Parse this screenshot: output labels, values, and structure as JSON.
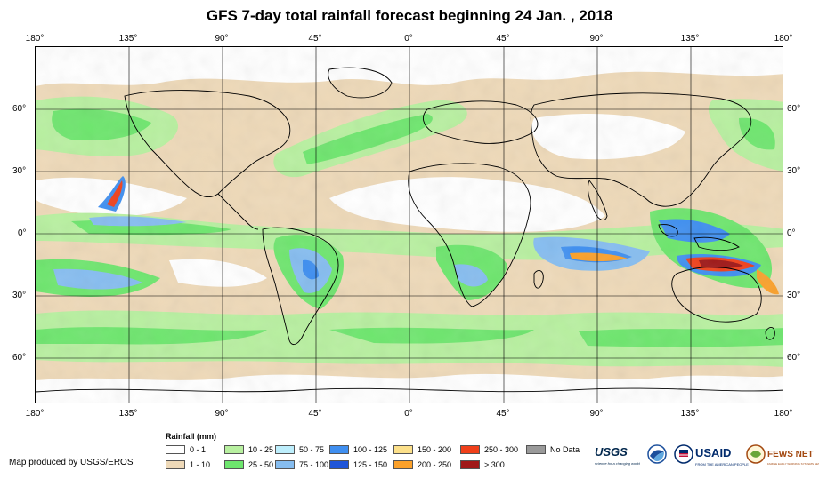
{
  "title": "GFS 7-day total rainfall forecast beginning 24 Jan. , 2018",
  "lon_labels_top": [
    "180°",
    "135°",
    "90°",
    "45°",
    "0°",
    "45°",
    "90°",
    "135°",
    "180°"
  ],
  "lon_labels_bottom": [
    "180°",
    "135°",
    "90°",
    "45°",
    "0°",
    "45°",
    "90°",
    "135°",
    "180°"
  ],
  "lat_labels": [
    "60°",
    "30°",
    "0°",
    "30°",
    "60°"
  ],
  "legend": {
    "title": "Rainfall (mm)",
    "items": [
      {
        "label": "0 - 1",
        "color": "#ffffff"
      },
      {
        "label": "1 - 10",
        "color": "#eed9b8"
      },
      {
        "label": "10 - 25",
        "color": "#b8f0a0"
      },
      {
        "label": "25 - 50",
        "color": "#6ee66e"
      },
      {
        "label": "50 - 75",
        "color": "#bdeefc"
      },
      {
        "label": "75 - 100",
        "color": "#86bdf0"
      },
      {
        "label": "100 - 125",
        "color": "#3f8ff0"
      },
      {
        "label": "125 - 150",
        "color": "#1f55d8"
      },
      {
        "label": "150 - 200",
        "color": "#fce08a"
      },
      {
        "label": "200 - 250",
        "color": "#fca12a"
      },
      {
        "label": "250 - 300",
        "color": "#f0401a"
      },
      {
        "label": "> 300",
        "color": "#a01818"
      },
      {
        "label": "No Data",
        "color": "#9a9a9a"
      }
    ]
  },
  "credit": "Map produced by USGS/EROS",
  "logos": {
    "usgs": "USGS",
    "usgs_tagline": "science for a changing world",
    "usaid": "USAID",
    "usaid_tagline": "FROM THE AMERICAN PEOPLE",
    "fewsnet": "FEWS NET",
    "fewsnet_tagline": "FAMINE EARLY WARNING SYSTEMS NETWORK"
  }
}
